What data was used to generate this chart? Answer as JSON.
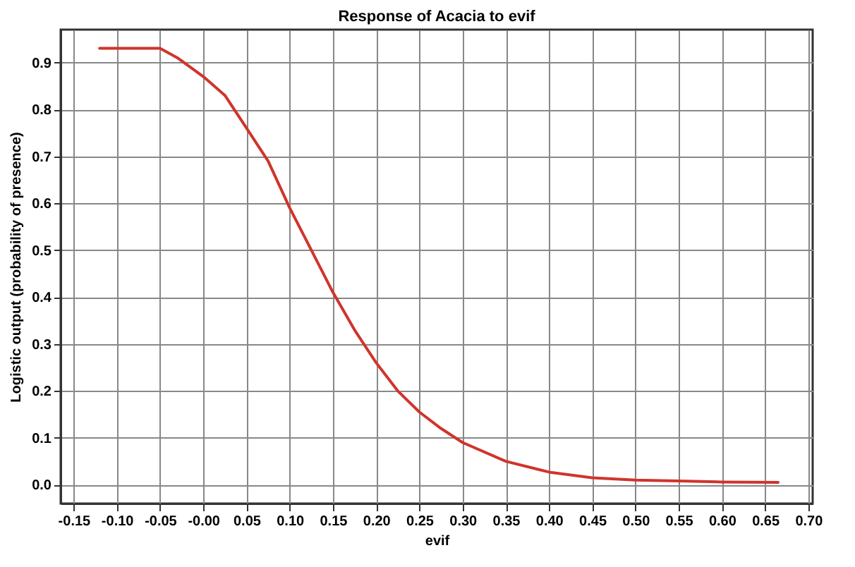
{
  "chart_data": {
    "type": "line",
    "title": "Response of Acacia to evif",
    "xlabel": "evif",
    "ylabel": "Logistic output (probability of presence)",
    "x": [
      -0.12,
      -0.05,
      -0.03,
      0,
      0.025,
      0.05,
      0.075,
      0.1,
      0.125,
      0.15,
      0.175,
      0.2,
      0.225,
      0.25,
      0.275,
      0.3,
      0.35,
      0.4,
      0.45,
      0.5,
      0.55,
      0.6,
      0.665
    ],
    "series": [
      {
        "color": "#d0342c",
        "values": [
          0.93,
          0.93,
          0.91,
          0.87,
          0.83,
          0.76,
          0.69,
          0.59,
          0.5,
          0.41,
          0.33,
          0.26,
          0.2,
          0.155,
          0.12,
          0.09,
          0.05,
          0.027,
          0.015,
          0.01,
          0.008,
          0.006,
          0.005
        ]
      }
    ],
    "xlim": [
      -0.165,
      0.705
    ],
    "ylim": [
      -0.04,
      0.97
    ],
    "xticks": [
      -0.15,
      {
        "value": -0.1,
        "label": "-0.10"
      },
      -0.05,
      {
        "value": 0,
        "label": "-0.00"
      },
      0.05,
      {
        "value": 0.1,
        "label": "0.10"
      },
      0.15,
      {
        "value": 0.2,
        "label": "0.20"
      },
      0.25,
      {
        "value": 0.3,
        "label": "0.30"
      },
      0.35,
      {
        "value": 0.4,
        "label": "0.40"
      },
      0.45,
      {
        "value": 0.5,
        "label": "0.50"
      },
      0.55,
      {
        "value": 0.6,
        "label": "0.60"
      },
      0.65,
      {
        "value": 0.7,
        "label": "0.70"
      }
    ],
    "yticks": [
      {
        "value": 0,
        "label": "0.0"
      },
      0.1,
      0.2,
      0.3,
      0.4,
      0.5,
      0.6,
      0.7,
      0.8,
      0.9
    ],
    "grid": true,
    "marker": "none",
    "line_style": "solid"
  }
}
